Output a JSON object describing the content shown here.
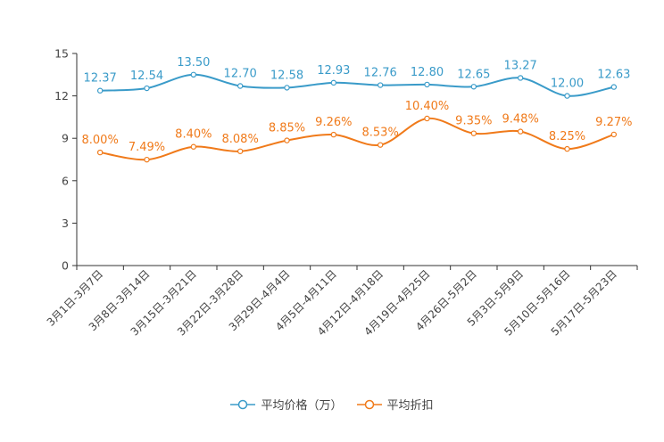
{
  "chart_data": {
    "type": "line",
    "categories": [
      "3月1日-3月7日",
      "3月8日-3月14日",
      "3月15日-3月21日",
      "3月22日-3月28日",
      "3月29日-4月4日",
      "4月5日-4月11日",
      "4月12日-4月18日",
      "4月19日-4月25日",
      "4月26日-5月2日",
      "5月3日-5月9日",
      "5月10日-5月16日",
      "5月17日-5月23日"
    ],
    "ylim": [
      0,
      15
    ],
    "yticks": [
      0,
      3,
      6,
      9,
      12,
      15
    ],
    "series": [
      {
        "name": "平均价格（万）",
        "color": "#3a9bc9",
        "values": [
          12.37,
          12.54,
          13.5,
          12.7,
          12.58,
          12.93,
          12.76,
          12.8,
          12.65,
          13.27,
          12.0,
          12.63
        ],
        "labels": [
          "12.37",
          "12.54",
          "13.50",
          "12.70",
          "12.58",
          "12.93",
          "12.76",
          "12.80",
          "12.65",
          "13.27",
          "12.00",
          "12.63"
        ]
      },
      {
        "name": "平均折扣",
        "color": "#f07a1a",
        "values": [
          8.0,
          7.49,
          8.4,
          8.08,
          8.85,
          9.26,
          8.53,
          10.4,
          9.35,
          9.48,
          8.25,
          9.27
        ],
        "labels": [
          "8.00%",
          "7.49%",
          "8.40%",
          "8.08%",
          "8.85%",
          "9.26%",
          "8.53%",
          "10.40%",
          "9.35%",
          "9.48%",
          "8.25%",
          "9.27%"
        ]
      }
    ],
    "title": "",
    "xlabel": "",
    "ylabel": "",
    "grid": false,
    "legend": "bottom-center"
  }
}
